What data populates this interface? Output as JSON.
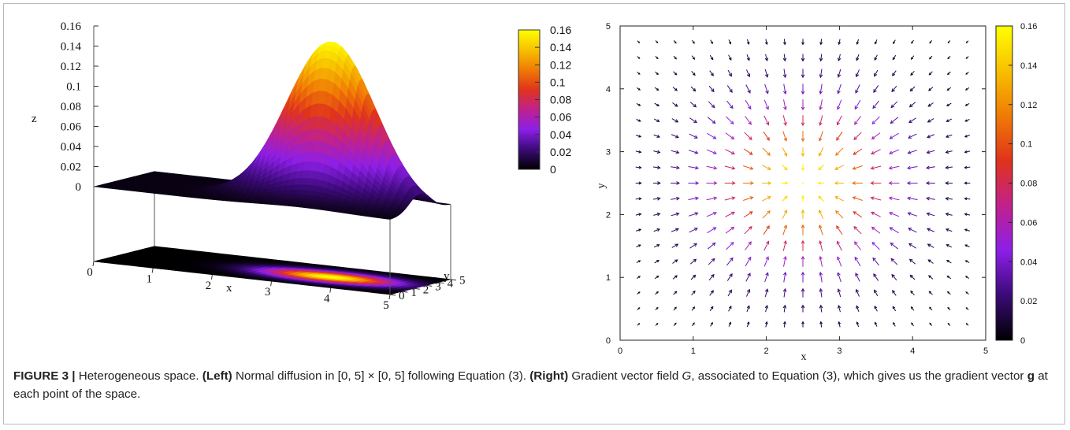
{
  "chart_data": [
    {
      "type": "surface3d",
      "panel": "left",
      "description_kind": "3D surface with projected heatmap on the base plane",
      "surface": {
        "function": "gaussian",
        "peak": 0.16,
        "peak_x": 3.5,
        "peak_y": 2.5
      },
      "xlabel": "x",
      "ylabel": "y",
      "zlabel": "z",
      "x_ticks": [
        "0",
        "1",
        "2",
        "3",
        "4",
        "5"
      ],
      "y_ticks": [
        "0",
        "1",
        "2",
        "3",
        "4",
        "5"
      ],
      "z_ticks": [
        "0",
        "0.02",
        "0.04",
        "0.06",
        "0.08",
        "0.1",
        "0.12",
        "0.14",
        "0.16"
      ],
      "xlim": [
        0,
        5
      ],
      "ylim": [
        0,
        5
      ],
      "zlim": [
        0,
        0.16
      ],
      "colorbar": {
        "ticks": [
          "0",
          "0.02",
          "0.04",
          "0.06",
          "0.08",
          "0.1",
          "0.12",
          "0.14",
          "0.16"
        ],
        "range": [
          0,
          0.16
        ]
      },
      "colormap": [
        "#000000",
        "#3b0a78",
        "#8c1fe8",
        "#c0218d",
        "#e0331b",
        "#f07b05",
        "#f7c000",
        "#ffff00"
      ]
    },
    {
      "type": "vector_field",
      "panel": "right",
      "xlabel": "x",
      "ylabel": "y",
      "x_ticks": [
        "0",
        "1",
        "2",
        "3",
        "4",
        "5"
      ],
      "y_ticks": [
        "0",
        "1",
        "2",
        "3",
        "4",
        "5"
      ],
      "xlim": [
        0,
        5
      ],
      "ylim": [
        0,
        5
      ],
      "grid_spacing": 0.25,
      "grid_range": [
        0.25,
        4.75
      ],
      "field_center": [
        2.5,
        2.5
      ],
      "colorbar": {
        "ticks": [
          "0",
          "0.02",
          "0.04",
          "0.06",
          "0.08",
          "0.1",
          "0.12",
          "0.14",
          "0.16"
        ],
        "range": [
          0,
          0.16
        ]
      }
    }
  ],
  "caption": {
    "label": "FIGURE 3 |",
    "intro": " Heterogeneous space. ",
    "left_tag": "(Left)",
    "left_text": " Normal diffusion in [0, 5] × [0, 5] following Equation (3). ",
    "right_tag": "(Right)",
    "right_text_a": " Gradient vector field ",
    "symbol_G": "G",
    "right_text_b": ", associated to Equation (3), which gives us the gradient vector ",
    "symbol_g": "g",
    "right_text_c": " at each point of the space."
  }
}
